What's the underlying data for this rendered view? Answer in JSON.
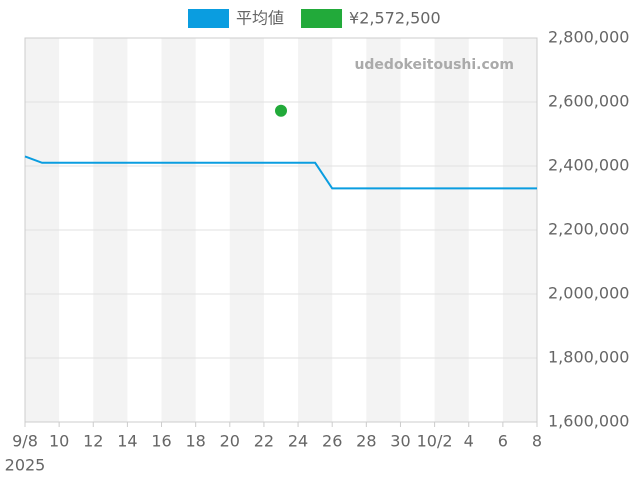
{
  "chart_data": {
    "type": "line",
    "watermark": "udedokeitoushi.com",
    "x": [
      "2025-09-08",
      "2025-09-09",
      "2025-09-10",
      "2025-09-11",
      "2025-09-12",
      "2025-09-13",
      "2025-09-14",
      "2025-09-15",
      "2025-09-16",
      "2025-09-17",
      "2025-09-18",
      "2025-09-19",
      "2025-09-20",
      "2025-09-21",
      "2025-09-22",
      "2025-09-23",
      "2025-09-24",
      "2025-09-25",
      "2025-09-26",
      "2025-09-27",
      "2025-09-28",
      "2025-09-29",
      "2025-09-30",
      "2025-10-01",
      "2025-10-02",
      "2025-10-03",
      "2025-10-04",
      "2025-10-05",
      "2025-10-06",
      "2025-10-07",
      "2025-10-08"
    ],
    "xlim": [
      "2025-09-08",
      "2025-10-08"
    ],
    "xticks": [
      {
        "value": "2025-09-08",
        "label": "9/8"
      },
      {
        "value": "2025-09-10",
        "label": "10"
      },
      {
        "value": "2025-09-12",
        "label": "12"
      },
      {
        "value": "2025-09-14",
        "label": "14"
      },
      {
        "value": "2025-09-16",
        "label": "16"
      },
      {
        "value": "2025-09-18",
        "label": "18"
      },
      {
        "value": "2025-09-20",
        "label": "20"
      },
      {
        "value": "2025-09-22",
        "label": "22"
      },
      {
        "value": "2025-09-24",
        "label": "24"
      },
      {
        "value": "2025-09-26",
        "label": "26"
      },
      {
        "value": "2025-09-28",
        "label": "28"
      },
      {
        "value": "2025-09-30",
        "label": "30"
      },
      {
        "value": "2025-10-02",
        "label": "10/2"
      },
      {
        "value": "2025-10-04",
        "label": "4"
      },
      {
        "value": "2025-10-06",
        "label": "6"
      },
      {
        "value": "2025-10-08",
        "label": "8"
      }
    ],
    "x_year_label": "2025",
    "ylim": [
      1600000,
      2800000
    ],
    "yticks": [
      {
        "value": 1600000,
        "label": "1,600,000"
      },
      {
        "value": 1800000,
        "label": "1,800,000"
      },
      {
        "value": 2000000,
        "label": "2,000,000"
      },
      {
        "value": 2200000,
        "label": "2,200,000"
      },
      {
        "value": 2400000,
        "label": "2,400,000"
      },
      {
        "value": 2600000,
        "label": "2,600,000"
      },
      {
        "value": 2800000,
        "label": "2,800,000"
      }
    ],
    "grid": true,
    "legend": "top",
    "series": [
      {
        "name": "平均値",
        "color": "#0a9de0",
        "type": "line",
        "values": [
          2430000,
          2410000,
          2410000,
          2410000,
          2410000,
          2410000,
          2410000,
          2410000,
          2410000,
          2410000,
          2410000,
          2410000,
          2410000,
          2410000,
          2410000,
          2410000,
          2410000,
          2410000,
          2330000,
          2330000,
          2330000,
          2330000,
          2330000,
          2330000,
          2330000,
          2330000,
          2330000,
          2330000,
          2330000,
          2330000,
          2330000
        ]
      },
      {
        "name": "¥2,572,500",
        "color": "#22aa3a",
        "type": "scatter",
        "values": [
          null,
          null,
          null,
          null,
          null,
          null,
          null,
          null,
          null,
          null,
          null,
          null,
          null,
          null,
          null,
          2572500,
          null,
          null,
          null,
          null,
          null,
          null,
          null,
          null,
          null,
          null,
          null,
          null,
          null,
          null,
          null
        ]
      }
    ]
  }
}
